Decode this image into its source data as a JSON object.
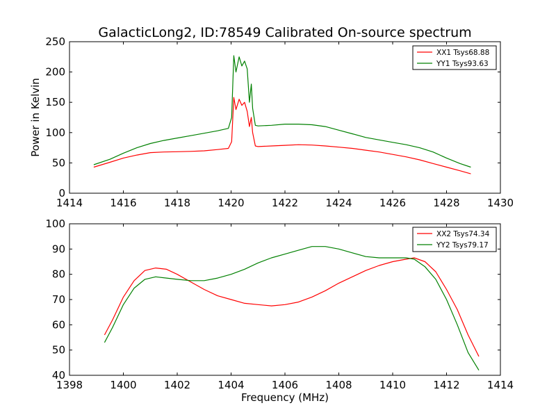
{
  "figure": {
    "title": "GalacticLong2, ID:78549 Calibrated On-source spectrum"
  },
  "chart_data": [
    {
      "type": "line",
      "title": "GalacticLong2, ID:78549 Calibrated On-source spectrum",
      "xlabel": "",
      "ylabel": "Power in Kelvin",
      "xlim": [
        1414,
        1430
      ],
      "ylim": [
        0,
        250
      ],
      "xticks": [
        "1414",
        "1416",
        "1418",
        "1420",
        "1422",
        "1424",
        "1426",
        "1428",
        "1430"
      ],
      "yticks": [
        "0",
        "50",
        "100",
        "150",
        "200",
        "250"
      ],
      "grid": false,
      "legend": "top-right",
      "series": [
        {
          "name": "XX1 Tsys68.88",
          "color": "#ff0000",
          "points": [
            [
              1414.9,
              43
            ],
            [
              1415.5,
              51
            ],
            [
              1416,
              58
            ],
            [
              1416.5,
              63
            ],
            [
              1417,
              67
            ],
            [
              1417.5,
              68
            ],
            [
              1418,
              68.5
            ],
            [
              1418.5,
              69
            ],
            [
              1419,
              70
            ],
            [
              1419.5,
              72
            ],
            [
              1419.9,
              74
            ],
            [
              1420.02,
              85
            ],
            [
              1420.1,
              158
            ],
            [
              1420.18,
              138
            ],
            [
              1420.3,
              155
            ],
            [
              1420.4,
              145
            ],
            [
              1420.5,
              150
            ],
            [
              1420.6,
              135
            ],
            [
              1420.68,
              110
            ],
            [
              1420.75,
              125
            ],
            [
              1420.8,
              100
            ],
            [
              1420.9,
              78
            ],
            [
              1421,
              77
            ],
            [
              1421.5,
              78
            ],
            [
              1422,
              79
            ],
            [
              1422.5,
              80
            ],
            [
              1423,
              79.5
            ],
            [
              1423.5,
              78
            ],
            [
              1424,
              76
            ],
            [
              1424.5,
              74
            ],
            [
              1425,
              71
            ],
            [
              1425.5,
              68
            ],
            [
              1426,
              64
            ],
            [
              1426.5,
              60
            ],
            [
              1427,
              55
            ],
            [
              1427.5,
              49
            ],
            [
              1428,
              43
            ],
            [
              1428.5,
              37
            ],
            [
              1428.9,
              32
            ]
          ]
        },
        {
          "name": "YY1 Tsys93.63",
          "color": "#008000",
          "points": [
            [
              1414.9,
              47
            ],
            [
              1415.5,
              56
            ],
            [
              1416,
              66
            ],
            [
              1416.5,
              75
            ],
            [
              1417,
              82
            ],
            [
              1417.5,
              87
            ],
            [
              1418,
              91
            ],
            [
              1418.5,
              95
            ],
            [
              1419,
              99
            ],
            [
              1419.5,
              103
            ],
            [
              1419.9,
              107
            ],
            [
              1420.02,
              125
            ],
            [
              1420.1,
              227
            ],
            [
              1420.18,
              200
            ],
            [
              1420.3,
              225
            ],
            [
              1420.4,
              210
            ],
            [
              1420.5,
              218
            ],
            [
              1420.6,
              205
            ],
            [
              1420.68,
              150
            ],
            [
              1420.75,
              180
            ],
            [
              1420.8,
              140
            ],
            [
              1420.9,
              112
            ],
            [
              1421,
              111
            ],
            [
              1421.5,
              112
            ],
            [
              1422,
              114
            ],
            [
              1422.5,
              114
            ],
            [
              1423,
              113
            ],
            [
              1423.5,
              110
            ],
            [
              1424,
              104
            ],
            [
              1424.5,
              98
            ],
            [
              1425,
              92
            ],
            [
              1425.5,
              88
            ],
            [
              1426,
              84
            ],
            [
              1426.5,
              80
            ],
            [
              1427,
              75
            ],
            [
              1427.5,
              68
            ],
            [
              1428,
              58
            ],
            [
              1428.5,
              49
            ],
            [
              1428.9,
              43
            ]
          ]
        }
      ]
    },
    {
      "type": "line",
      "title": "",
      "xlabel": "Frequency (MHz)",
      "ylabel": "",
      "xlim": [
        1398,
        1414
      ],
      "ylim": [
        40,
        100
      ],
      "xticks": [
        "1398",
        "1400",
        "1402",
        "1404",
        "1406",
        "1408",
        "1410",
        "1412",
        "1414"
      ],
      "yticks": [
        "40",
        "50",
        "60",
        "70",
        "80",
        "90",
        "100"
      ],
      "grid": false,
      "legend": "top-right",
      "series": [
        {
          "name": "XX2 Tsys74.34",
          "color": "#ff0000",
          "points": [
            [
              1399.3,
              56
            ],
            [
              1399.6,
              62
            ],
            [
              1400,
              71
            ],
            [
              1400.4,
              77.5
            ],
            [
              1400.8,
              81.5
            ],
            [
              1401.2,
              82.5
            ],
            [
              1401.6,
              82
            ],
            [
              1402,
              80
            ],
            [
              1402.5,
              77
            ],
            [
              1403,
              74
            ],
            [
              1403.5,
              71.5
            ],
            [
              1404,
              70
            ],
            [
              1404.5,
              68.5
            ],
            [
              1405,
              68
            ],
            [
              1405.5,
              67.5
            ],
            [
              1406,
              68
            ],
            [
              1406.5,
              69
            ],
            [
              1407,
              71
            ],
            [
              1407.5,
              73.5
            ],
            [
              1408,
              76.5
            ],
            [
              1408.5,
              79
            ],
            [
              1409,
              81.5
            ],
            [
              1409.5,
              83.5
            ],
            [
              1410,
              85
            ],
            [
              1410.5,
              86
            ],
            [
              1410.8,
              86.5
            ],
            [
              1411.2,
              85
            ],
            [
              1411.6,
              81
            ],
            [
              1412,
              74
            ],
            [
              1412.4,
              66
            ],
            [
              1412.8,
              56
            ],
            [
              1413.2,
              47.5
            ]
          ]
        },
        {
          "name": "YY2 Tsys79.17",
          "color": "#008000",
          "points": [
            [
              1399.3,
              53
            ],
            [
              1399.6,
              59
            ],
            [
              1400,
              68
            ],
            [
              1400.4,
              74.5
            ],
            [
              1400.8,
              78
            ],
            [
              1401.2,
              79
            ],
            [
              1401.6,
              78.5
            ],
            [
              1402,
              78
            ],
            [
              1402.5,
              77.5
            ],
            [
              1403,
              77.5
            ],
            [
              1403.5,
              78.5
            ],
            [
              1404,
              80
            ],
            [
              1404.5,
              82
            ],
            [
              1405,
              84.5
            ],
            [
              1405.5,
              86.5
            ],
            [
              1406,
              88
            ],
            [
              1406.5,
              89.5
            ],
            [
              1407,
              91
            ],
            [
              1407.5,
              91
            ],
            [
              1408,
              90
            ],
            [
              1408.5,
              88.5
            ],
            [
              1409,
              87
            ],
            [
              1409.5,
              86.5
            ],
            [
              1410,
              86.5
            ],
            [
              1410.5,
              86.5
            ],
            [
              1410.8,
              86
            ],
            [
              1411.2,
              83
            ],
            [
              1411.6,
              78
            ],
            [
              1412,
              70
            ],
            [
              1412.4,
              60
            ],
            [
              1412.8,
              49
            ],
            [
              1413.2,
              42
            ]
          ]
        }
      ]
    }
  ]
}
